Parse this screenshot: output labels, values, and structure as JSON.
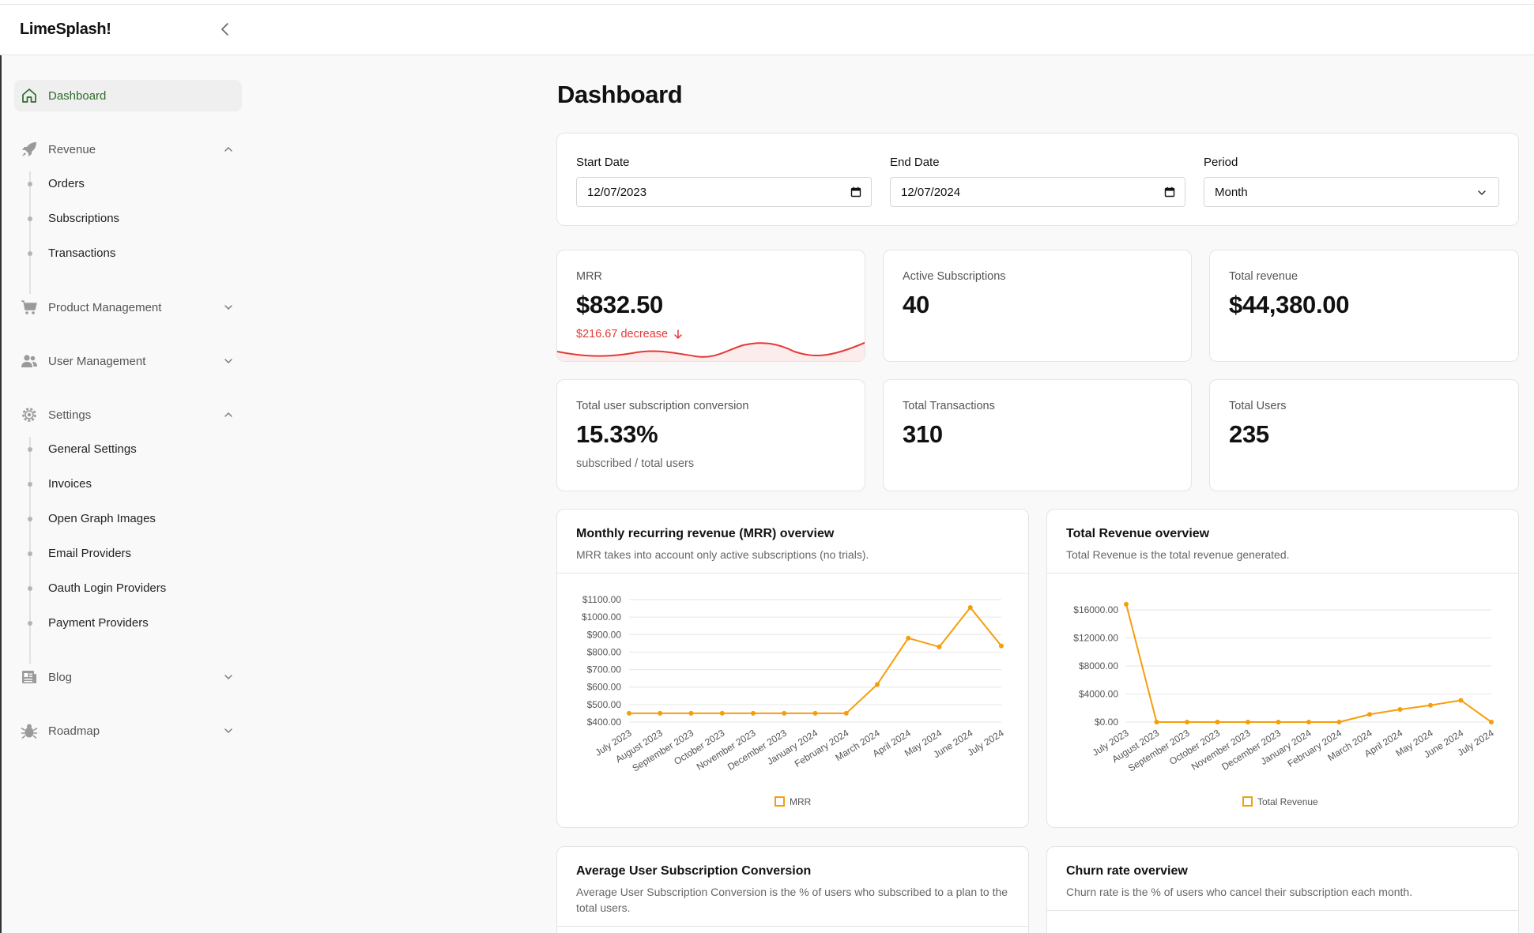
{
  "app": {
    "name": "LimeSplash!"
  },
  "sidebar": {
    "items": [
      {
        "label": "Dashboard",
        "icon": "home-icon",
        "active": true
      },
      {
        "label": "Revenue",
        "icon": "rocket-icon",
        "expanded": true,
        "children": [
          "Orders",
          "Subscriptions",
          "Transactions"
        ]
      },
      {
        "label": "Product Management",
        "icon": "cart-icon",
        "expanded": false
      },
      {
        "label": "User Management",
        "icon": "users-icon",
        "expanded": false
      },
      {
        "label": "Settings",
        "icon": "gear-icon",
        "expanded": true,
        "children": [
          "General Settings",
          "Invoices",
          "Open Graph Images",
          "Email Providers",
          "Oauth Login Providers",
          "Payment Providers"
        ]
      },
      {
        "label": "Blog",
        "icon": "newspaper-icon",
        "expanded": false
      },
      {
        "label": "Roadmap",
        "icon": "bug-icon",
        "expanded": false
      }
    ]
  },
  "page": {
    "title": "Dashboard"
  },
  "filters": {
    "start_label": "Start Date",
    "start_value": "12/07/2023",
    "end_label": "End Date",
    "end_value": "12/07/2024",
    "period_label": "Period",
    "period_value": "Month"
  },
  "stats": {
    "mrr": {
      "label": "MRR",
      "value": "$832.50",
      "change": "$216.67 decrease"
    },
    "active_subscriptions": {
      "label": "Active Subscriptions",
      "value": "40"
    },
    "total_revenue": {
      "label": "Total revenue",
      "value": "$44,380.00"
    },
    "conversion": {
      "label": "Total user subscription conversion",
      "value": "15.33%",
      "sub": "subscribed / total users"
    },
    "transactions": {
      "label": "Total Transactions",
      "value": "310"
    },
    "users": {
      "label": "Total Users",
      "value": "235"
    }
  },
  "colors": {
    "accent": "#2f6b2a",
    "series": "#f59e0b",
    "negative": "#e53935"
  },
  "charts": {
    "mrr": {
      "title": "Monthly recurring revenue (MRR) overview",
      "description": "MRR takes into account only active subscriptions (no trials)."
    },
    "revenue": {
      "title": "Total Revenue overview",
      "description": "Total Revenue is the total revenue generated."
    },
    "conversion": {
      "title": "Average User Subscription Conversion",
      "description": "Average User Subscription Conversion is the % of users who subscribed to a plan to the total users."
    },
    "churn": {
      "title": "Churn rate overview",
      "description": "Churn rate is the % of users who cancel their subscription each month."
    }
  },
  "chart_data": [
    {
      "type": "line",
      "title": "",
      "categories": [
        "July 2023",
        "August 2023",
        "September 2023",
        "October 2023",
        "November 2023",
        "December 2023",
        "January 2024",
        "February 2024",
        "March 2024",
        "April 2024",
        "May 2024",
        "June 2024",
        "July 2024"
      ],
      "series": [
        {
          "name": "MRR",
          "values": [
            450,
            450,
            450,
            450,
            450,
            450,
            450,
            450,
            615,
            880,
            830,
            1055,
            835
          ]
        }
      ],
      "yticks": [
        "$1100.00",
        "$1000.00",
        "$900.00",
        "$800.00",
        "$700.00",
        "$600.00",
        "$500.00",
        "$400.00"
      ],
      "ylim": [
        400,
        1100
      ],
      "legend": "bottom",
      "grid": true
    },
    {
      "type": "line",
      "title": "",
      "categories": [
        "July 2023",
        "August 2023",
        "September 2023",
        "October 2023",
        "November 2023",
        "December 2023",
        "January 2024",
        "February 2024",
        "March 2024",
        "April 2024",
        "May 2024",
        "June 2024",
        "July 2024"
      ],
      "series": [
        {
          "name": "Total Revenue",
          "values": [
            16800,
            0,
            0,
            0,
            0,
            0,
            0,
            0,
            1100,
            1800,
            2400,
            3100,
            0
          ]
        }
      ],
      "yticks": [
        "$16000.00",
        "$12000.00",
        "$8000.00",
        "$4000.00",
        "$0.00"
      ],
      "ylim": [
        0,
        16000
      ],
      "legend": "bottom",
      "grid": true
    }
  ]
}
